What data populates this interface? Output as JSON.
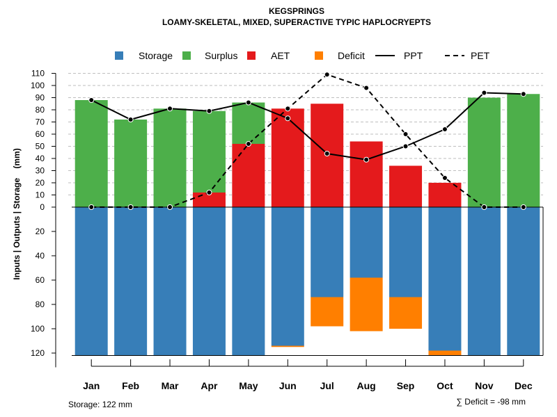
{
  "chart_data": {
    "type": "bar",
    "title": "KEGSPRINGS",
    "subtitle": "LOAMY-SKELETAL, MIXED, SUPERACTIVE TYPIC HAPLOCRYEPTS",
    "ylabel": "Inputs | Outputs | Storage    (mm)",
    "categories": [
      "Jan",
      "Feb",
      "Mar",
      "Apr",
      "May",
      "Jun",
      "Jul",
      "Aug",
      "Sep",
      "Oct",
      "Nov",
      "Dec"
    ],
    "y_ticks_upper": [
      0,
      10,
      20,
      30,
      40,
      50,
      60,
      70,
      80,
      90,
      100,
      110
    ],
    "y_ticks_lower": [
      20,
      40,
      60,
      80,
      100,
      120
    ],
    "ylim_upper": [
      0,
      110
    ],
    "ylim_lower": [
      0,
      122
    ],
    "legend": [
      {
        "key": "storage",
        "label": "Storage",
        "type": "box",
        "color": "#377EB8"
      },
      {
        "key": "surplus",
        "label": "Surplus",
        "type": "box",
        "color": "#4DAF4A"
      },
      {
        "key": "aet",
        "label": "AET",
        "type": "box",
        "color": "#E41A1C"
      },
      {
        "key": "deficit",
        "label": "Deficit",
        "type": "box",
        "color": "#FF7F00"
      },
      {
        "key": "ppt",
        "label": "PPT",
        "type": "solid-line",
        "color": "#000000"
      },
      {
        "key": "pet",
        "label": "PET",
        "type": "dashed-line",
        "color": "#000000"
      }
    ],
    "series": [
      {
        "name": "AET",
        "values": [
          0,
          0,
          0,
          12,
          52,
          81,
          85,
          54,
          34,
          20,
          0,
          0
        ]
      },
      {
        "name": "Surplus",
        "values": [
          88,
          72,
          81,
          67,
          34,
          0,
          0,
          0,
          0,
          0,
          90,
          93
        ]
      },
      {
        "name": "Storage",
        "values": [
          122,
          122,
          122,
          122,
          122,
          114,
          74,
          58,
          74,
          118,
          122,
          122
        ]
      },
      {
        "name": "Deficit",
        "values": [
          0,
          0,
          0,
          0,
          0,
          1,
          24,
          44,
          26,
          4,
          0,
          0
        ]
      },
      {
        "name": "PPT",
        "values": [
          88,
          72,
          81,
          79,
          86,
          73,
          44,
          39,
          50,
          64,
          94,
          93
        ]
      },
      {
        "name": "PET",
        "values": [
          0,
          0,
          0,
          12,
          52,
          81,
          109,
          98,
          60,
          24,
          0,
          0
        ]
      }
    ],
    "storage_note": "Storage: 122 mm",
    "deficit_note": "∑ Deficit = -98 mm",
    "colors": {
      "storage": "#377EB8",
      "surplus": "#4DAF4A",
      "aet": "#E41A1C",
      "deficit": "#FF7F00",
      "grid": "#BEBEBE"
    }
  }
}
